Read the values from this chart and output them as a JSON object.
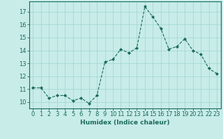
{
  "x": [
    0,
    1,
    2,
    3,
    4,
    5,
    6,
    7,
    8,
    9,
    10,
    11,
    12,
    13,
    14,
    15,
    16,
    17,
    18,
    19,
    20,
    21,
    22,
    23
  ],
  "y": [
    11.1,
    11.1,
    10.3,
    10.5,
    10.5,
    10.1,
    10.3,
    9.9,
    10.5,
    13.1,
    13.3,
    14.1,
    13.8,
    14.2,
    17.4,
    16.6,
    15.7,
    14.1,
    14.3,
    14.9,
    14.0,
    13.7,
    12.6,
    12.2
  ],
  "xlabel": "Humidex (Indice chaleur)",
  "ylim": [
    9.5,
    17.8
  ],
  "xlim": [
    -0.5,
    23.5
  ],
  "yticks": [
    10,
    11,
    12,
    13,
    14,
    15,
    16,
    17
  ],
  "xticks": [
    0,
    1,
    2,
    3,
    4,
    5,
    6,
    7,
    8,
    9,
    10,
    11,
    12,
    13,
    14,
    15,
    16,
    17,
    18,
    19,
    20,
    21,
    22,
    23
  ],
  "line_color": "#1a6b5a",
  "marker_color": "#1a6b5a",
  "bg_color": "#c8ece8",
  "grid_color": "#9ed4ce",
  "xlabel_fontsize": 6.5,
  "tick_fontsize": 6
}
